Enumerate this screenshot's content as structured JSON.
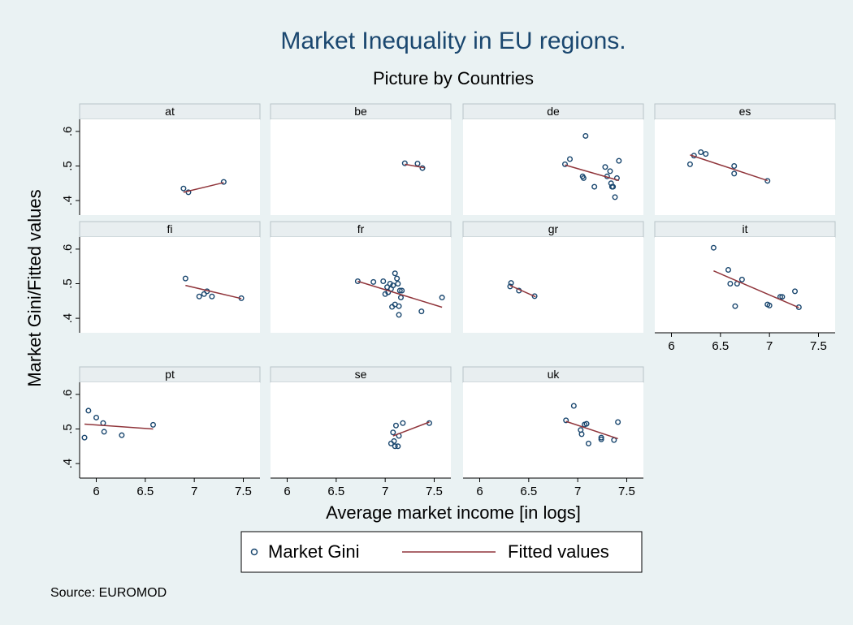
{
  "chart_data": {
    "type": "scatter",
    "title": "Market Inequality in EU regions.",
    "subtitle": "Picture  by Countries",
    "xlabel": "Average market income [in logs]",
    "ylabel": "Market Gini/Fitted values",
    "note": "Source: EUROMOD",
    "xlim": [
      5.83,
      7.67
    ],
    "ylim": [
      0.358,
      0.635
    ],
    "xticks": [
      6,
      6.5,
      7,
      7.5
    ],
    "yticks": [
      {
        "value": 0.4,
        "label": ".4"
      },
      {
        "value": 0.5,
        "label": ".5"
      },
      {
        "value": 0.6,
        "label": ".6"
      }
    ],
    "columns": 4,
    "series": [
      {
        "name": "Market Gini",
        "color": "#1a476f"
      },
      {
        "name": "Fitted values",
        "color": "#90353b"
      }
    ],
    "panels": [
      {
        "title": "at",
        "x": [
          6.89,
          6.94,
          7.3
        ],
        "values": [
          0.435,
          0.424,
          0.454
        ],
        "fit_x": [
          6.89,
          7.3
        ],
        "fit_values": [
          0.424,
          0.452
        ]
      },
      {
        "title": "be",
        "x": [
          7.2,
          7.33,
          7.38
        ],
        "values": [
          0.508,
          0.507,
          0.494
        ],
        "fit_x": [
          7.2,
          7.4
        ],
        "fit_values": [
          0.505,
          0.495
        ]
      },
      {
        "title": "de",
        "x": [
          6.87,
          6.92,
          7.05,
          7.06,
          7.08,
          7.17,
          7.28,
          7.3,
          7.33,
          7.34,
          7.35,
          7.36,
          7.38,
          7.4,
          7.42
        ],
        "values": [
          0.505,
          0.52,
          0.47,
          0.465,
          0.587,
          0.44,
          0.497,
          0.47,
          0.485,
          0.45,
          0.44,
          0.44,
          0.41,
          0.465,
          0.515
        ],
        "fit_x": [
          6.87,
          7.42
        ],
        "fit_values": [
          0.503,
          0.458
        ]
      },
      {
        "title": "es",
        "x": [
          6.19,
          6.23,
          6.3,
          6.35,
          6.64,
          6.64,
          6.98
        ],
        "values": [
          0.505,
          0.53,
          0.54,
          0.535,
          0.5,
          0.478,
          0.457
        ],
        "fit_x": [
          6.19,
          6.98
        ],
        "fit_values": [
          0.532,
          0.458
        ]
      },
      {
        "title": "fi",
        "x": [
          6.91,
          7.05,
          7.1,
          7.13,
          7.18,
          7.48
        ],
        "values": [
          0.515,
          0.463,
          0.47,
          0.478,
          0.463,
          0.458
        ],
        "fit_x": [
          6.91,
          7.48
        ],
        "fit_values": [
          0.495,
          0.457
        ]
      },
      {
        "title": "fr",
        "x": [
          6.72,
          6.88,
          6.98,
          7.0,
          7.02,
          7.03,
          7.05,
          7.06,
          7.07,
          7.08,
          7.1,
          7.1,
          7.12,
          7.13,
          7.14,
          7.14,
          7.15,
          7.16,
          7.17,
          7.37,
          7.58
        ],
        "values": [
          0.507,
          0.505,
          0.507,
          0.47,
          0.49,
          0.475,
          0.5,
          0.485,
          0.433,
          0.495,
          0.53,
          0.44,
          0.515,
          0.5,
          0.41,
          0.435,
          0.48,
          0.46,
          0.48,
          0.42,
          0.46
        ],
        "fit_x": [
          6.72,
          7.58
        ],
        "fit_values": [
          0.507,
          0.432
        ]
      },
      {
        "title": "gr",
        "x": [
          6.31,
          6.32,
          6.4,
          6.56
        ],
        "values": [
          0.492,
          0.502,
          0.48,
          0.464
        ],
        "fit_x": [
          6.31,
          6.57
        ],
        "fit_values": [
          0.495,
          0.462
        ]
      },
      {
        "title": "it",
        "x": [
          6.43,
          6.58,
          6.6,
          6.65,
          6.67,
          6.72,
          6.98,
          7.0,
          7.11,
          7.13,
          7.26,
          7.3
        ],
        "values": [
          0.604,
          0.54,
          0.5,
          0.435,
          0.5,
          0.512,
          0.44,
          0.437,
          0.462,
          0.462,
          0.478,
          0.432
        ],
        "fit_x": [
          6.43,
          7.3
        ],
        "fit_values": [
          0.537,
          0.431
        ]
      },
      {
        "title": "pt",
        "x": [
          5.88,
          5.92,
          6.0,
          6.07,
          6.08,
          6.26,
          6.58
        ],
        "values": [
          0.475,
          0.553,
          0.533,
          0.517,
          0.492,
          0.482,
          0.512
        ],
        "fit_x": [
          5.88,
          6.58
        ],
        "fit_values": [
          0.514,
          0.5
        ]
      },
      {
        "title": "se",
        "x": [
          7.06,
          7.08,
          7.09,
          7.1,
          7.11,
          7.13,
          7.14,
          7.18,
          7.45
        ],
        "values": [
          0.458,
          0.49,
          0.465,
          0.45,
          0.51,
          0.45,
          0.48,
          0.517,
          0.517
        ],
        "fit_x": [
          7.08,
          7.45
        ],
        "fit_values": [
          0.48,
          0.52
        ]
      },
      {
        "title": "uk",
        "x": [
          6.88,
          6.96,
          7.03,
          7.04,
          7.07,
          7.09,
          7.11,
          7.24,
          7.24,
          7.37,
          7.41
        ],
        "values": [
          0.525,
          0.567,
          0.497,
          0.485,
          0.513,
          0.515,
          0.458,
          0.475,
          0.47,
          0.468,
          0.52
        ],
        "fit_x": [
          6.88,
          7.41
        ],
        "fit_values": [
          0.522,
          0.472
        ]
      }
    ]
  }
}
